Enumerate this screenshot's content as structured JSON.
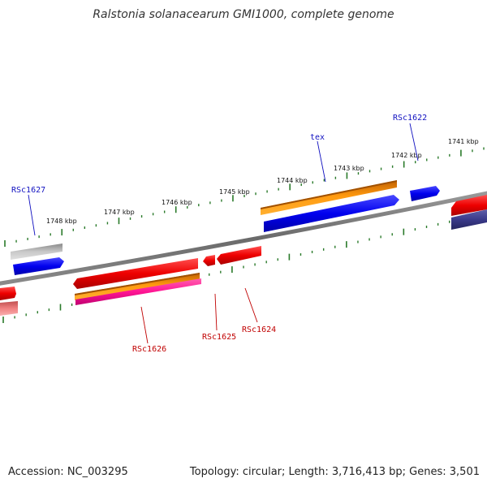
{
  "title": "Ralstonia solanacearum GMI1000, complete genome",
  "footer": {
    "accession": "Accession: NC_003295",
    "summary": "Topology: circular; Length: 3,716,413 bp; Genes: 3,501"
  },
  "colors": {
    "backbone": "#7a7a7a",
    "ticks": "#2a7a2a",
    "label_forward": "#1010c0",
    "label_reverse": "#c00000",
    "blue": "#0000ee",
    "orange": "#ff8c00",
    "red": "#ee0000",
    "magenta": "#ff1493",
    "gray": "#aaaaaa",
    "pink": "#f08080",
    "navy": "#3a3a8a"
  },
  "scale_labels": [
    "1741 kbp",
    "1742 kbp",
    "1743 kbp",
    "1744 kbp",
    "1745 kbp",
    "1746 kbp",
    "1747 kbp",
    "1748 kbp"
  ],
  "gene_labels": {
    "forward": [
      "tex",
      "RSc1622",
      "RSc1627"
    ],
    "reverse": [
      "RSc1626",
      "RSc1625",
      "RSc1624"
    ]
  }
}
